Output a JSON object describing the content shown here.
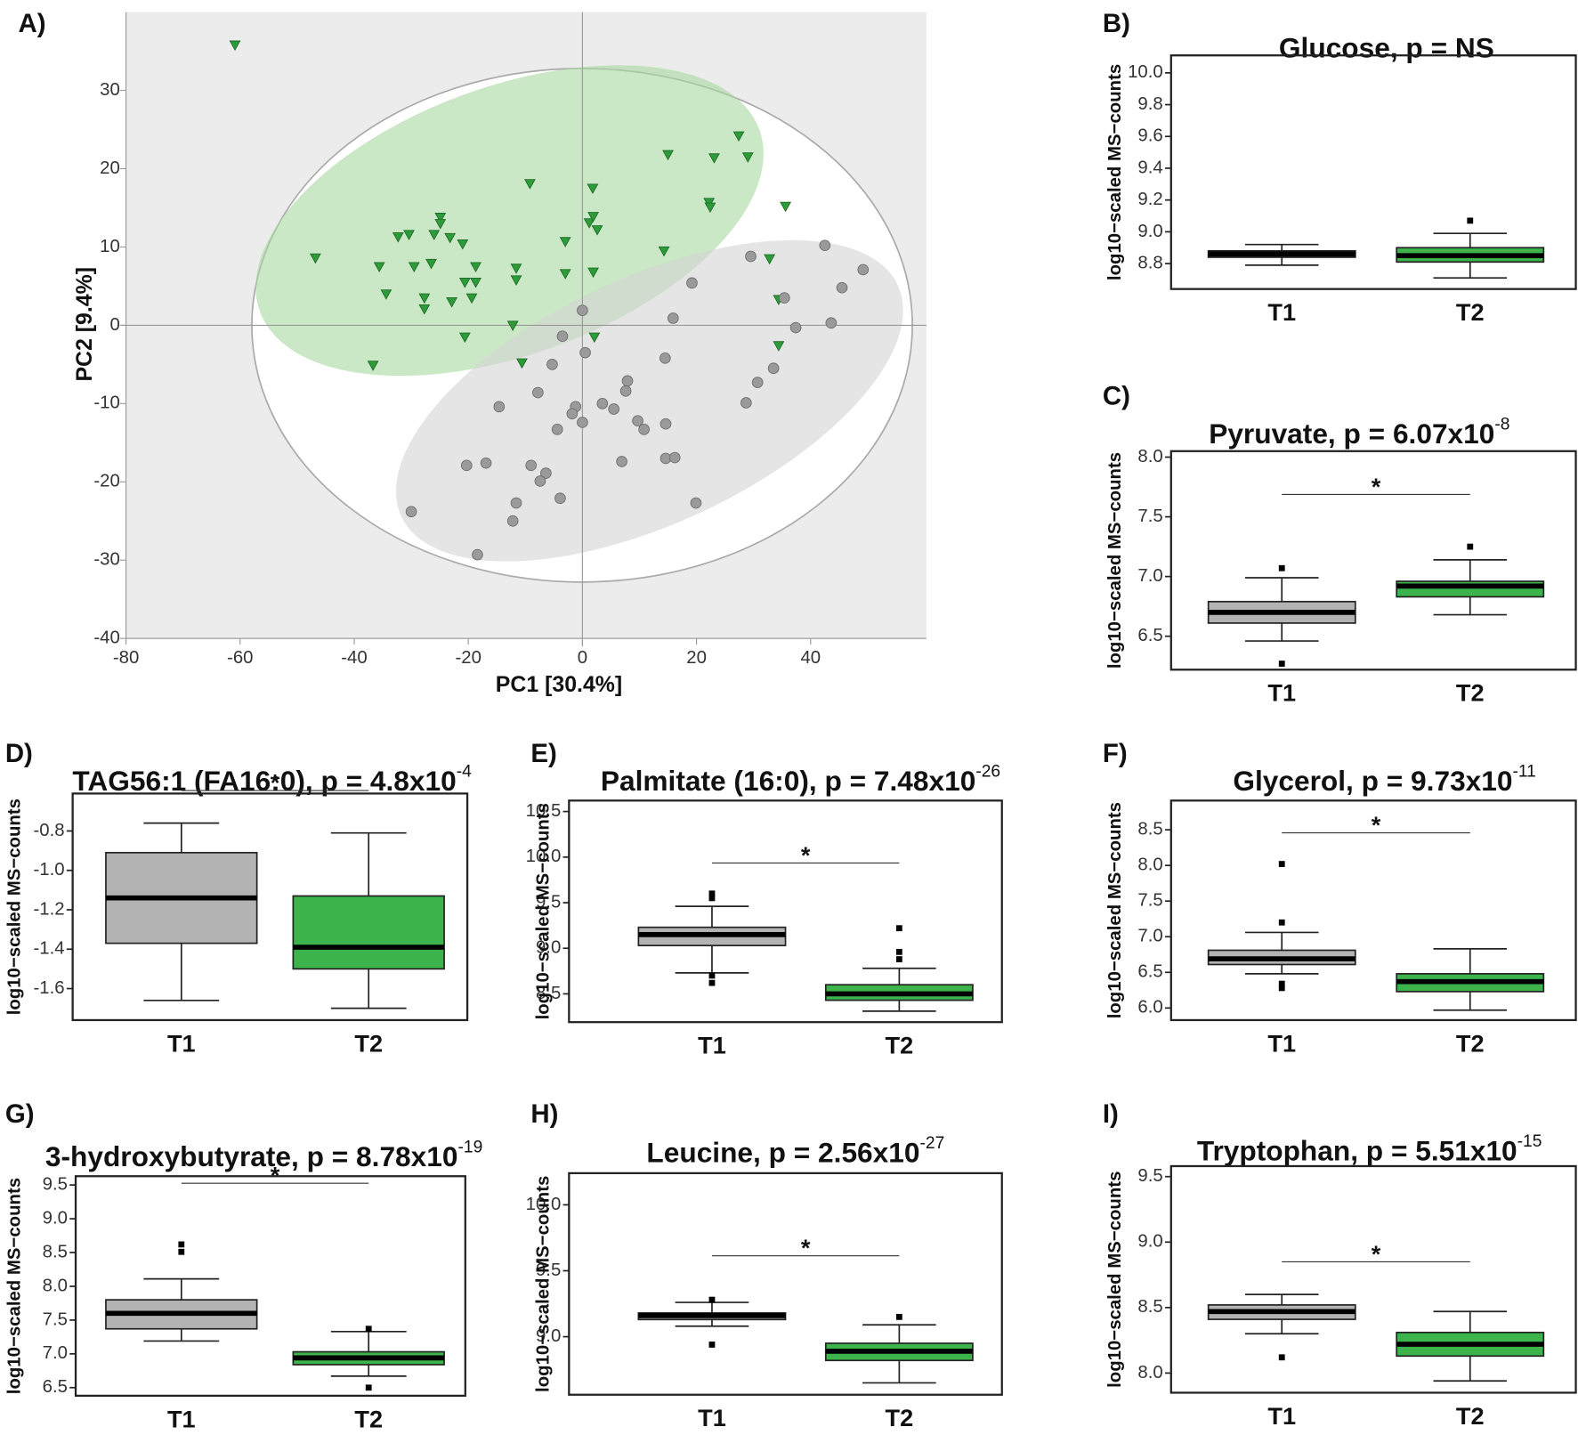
{
  "chart_data": [
    {
      "type": "scatter",
      "label": "A)",
      "xlabel": "PC1 [30.4%]",
      "ylabel": "PC2 [9.4%]",
      "xlim": [
        -80,
        60.3
      ],
      "ylim": [
        -40,
        40
      ],
      "xticks": [
        -80,
        -60,
        -40,
        -20,
        0,
        20,
        40
      ],
      "yticks": [
        -40,
        -30,
        -20,
        -10,
        0,
        10,
        20,
        30
      ],
      "series": [
        {
          "color": "#2e9b3a",
          "marker": "triangle",
          "x": [
            -60.9,
            -46.8,
            -36.7,
            -35.6,
            -34.4,
            -32.3,
            -30.4,
            -29.5,
            -27.7,
            -27.7,
            -26.5,
            -26.0,
            -24.9,
            -24.9,
            -23.2,
            -22.9,
            -21.0,
            -20.6,
            -20.6,
            -19.4,
            -18.7,
            -18.7,
            -12.2,
            -11.6,
            -11.6,
            -10.6,
            -9.2,
            -3.0,
            -3.0,
            1.2,
            1.8,
            1.9,
            2.6,
            1.9,
            2.1,
            14.3,
            15.0,
            22.2,
            22.4,
            23.1,
            27.4,
            29.0,
            32.8,
            34.4,
            34.4,
            35.6
          ],
          "y": [
            35.8,
            8.6,
            -5.1,
            7.5,
            4.0,
            11.3,
            11.6,
            7.5,
            3.5,
            2.1,
            7.9,
            11.6,
            13.8,
            13.0,
            11.2,
            3.0,
            10.4,
            5.5,
            -1.5,
            3.5,
            7.5,
            5.5,
            0.0,
            7.3,
            5.8,
            -4.8,
            18.1,
            10.7,
            6.6,
            13.1,
            17.5,
            13.9,
            12.2,
            6.8,
            -1.5,
            9.5,
            21.8,
            15.7,
            15.1,
            21.4,
            24.2,
            21.5,
            8.5,
            3.3,
            -2.6,
            15.2
          ]
        },
        {
          "color": "#9a9a9a",
          "marker": "circle",
          "x": [
            0.0,
            42.5,
            49.2,
            45.5,
            29.5,
            19.2,
            35.4,
            43.6,
            37.4,
            15.9,
            -3.5,
            0.5,
            33.5,
            30.7,
            14.5,
            -5.3,
            7.9,
            7.6,
            -7.8,
            -14.6,
            -1.2,
            -1.8,
            0.0,
            3.5,
            5.5,
            9.7,
            10.8,
            14.6,
            28.7,
            -4.4,
            -20.3,
            -16.9,
            -9.0,
            -6.4,
            -7.4,
            -3.9,
            6.9,
            14.6,
            16.2,
            -11.6,
            -12.2,
            -30.0,
            -18.4,
            19.9
          ],
          "y": [
            1.9,
            10.2,
            7.1,
            4.8,
            8.8,
            5.4,
            3.5,
            0.3,
            -0.3,
            0.9,
            -1.4,
            -3.5,
            -5.5,
            -7.3,
            -4.2,
            -5.0,
            -7.1,
            -8.4,
            -8.6,
            -10.4,
            -10.4,
            -11.3,
            -12.4,
            -10.0,
            -10.7,
            -12.2,
            -13.3,
            -12.6,
            -9.9,
            -13.3,
            -17.9,
            -17.6,
            -17.9,
            -18.9,
            -19.9,
            -22.1,
            -17.4,
            -17.0,
            -16.9,
            -22.7,
            -25.0,
            -23.8,
            -29.3,
            -22.7
          ]
        }
      ]
    },
    {
      "type": "box",
      "label": "B)",
      "title": "Glucose, p = NS",
      "ylabel": "log10−scaled MS−counts",
      "categories": [
        "T1",
        "T2"
      ],
      "ylim": [
        8.64,
        10.11
      ],
      "yticks": [
        8.8,
        {
          "value": 9,
          "label": "9.0"
        },
        9.2,
        9.4,
        9.6,
        9.8,
        {
          "value": 10,
          "label": "10.0"
        }
      ],
      "boxes": [
        {
          "color": "#b3b3b3",
          "min": 8.79,
          "q1": 8.84,
          "median": 8.86,
          "q3": 8.88,
          "max": 8.92,
          "outliers": []
        },
        {
          "color": "#3cb44b",
          "min": 8.71,
          "q1": 8.81,
          "median": 8.85,
          "q3": 8.9,
          "max": 8.99,
          "outliers": [
            9.07
          ]
        }
      ]
    },
    {
      "type": "box",
      "label": "C)",
      "title": "Pyruvate, p = 6.07x10",
      "title_exponent": "-8",
      "ylabel": "log10−scaled MS−counts",
      "categories": [
        "T1",
        "T2"
      ],
      "significance": "*",
      "ylim": [
        6.22,
        8.05
      ],
      "yticks": [
        6.5,
        {
          "value": 7,
          "label": "7.0"
        },
        7.5,
        {
          "value": 8,
          "label": "8.0"
        }
      ],
      "boxes": [
        {
          "color": "#b3b3b3",
          "min": 6.46,
          "q1": 6.61,
          "median": 6.7,
          "q3": 6.79,
          "max": 6.99,
          "outliers": [
            7.07,
            6.27
          ]
        },
        {
          "color": "#3cb44b",
          "min": 6.68,
          "q1": 6.83,
          "median": 6.92,
          "q3": 6.96,
          "max": 7.14,
          "outliers": [
            7.25
          ]
        }
      ]
    },
    {
      "type": "box",
      "label": "D)",
      "title": "TAG56:1 (FA16:0), p = 4.8x10",
      "title_exponent": "-4",
      "ylabel": "log10−scaled MS−counts",
      "categories": [
        "T1",
        "T2"
      ],
      "significance": "*",
      "ylim": [
        -1.76,
        -0.61
      ],
      "yticks": [
        -1.6,
        -1.4,
        -1.2,
        {
          "value": -1,
          "label": "-1.0"
        },
        -0.8
      ],
      "boxes": [
        {
          "color": "#b3b3b3",
          "min": -1.66,
          "q1": -1.37,
          "median": -1.14,
          "q3": -0.91,
          "max": -0.76,
          "outliers": []
        },
        {
          "color": "#3cb44b",
          "min": -1.7,
          "q1": -1.5,
          "median": -1.39,
          "q3": -1.13,
          "max": -0.81,
          "outliers": []
        }
      ]
    },
    {
      "type": "box",
      "label": "E)",
      "title": "Palmitate (16:0), p = 7.48x10",
      "title_exponent": "-26",
      "ylabel": "log10−scaled MS−counts",
      "categories": [
        "T1",
        "T2"
      ],
      "significance": "*",
      "ylim": [
        8.19,
        10.62
      ],
      "yticks": [
        8.5,
        {
          "value": 9,
          "label": "9.0"
        },
        9.5,
        {
          "value": 10,
          "label": "10.0"
        },
        10.5
      ],
      "boxes": [
        {
          "color": "#b3b3b3",
          "min": 8.73,
          "q1": 9.03,
          "median": 9.15,
          "q3": 9.23,
          "max": 9.46,
          "outliers": [
            9.6,
            9.55,
            8.7,
            8.62
          ]
        },
        {
          "color": "#3cb44b",
          "min": 8.31,
          "q1": 8.43,
          "median": 8.5,
          "q3": 8.6,
          "max": 8.78,
          "outliers": [
            9.22,
            8.96,
            8.88
          ]
        }
      ]
    },
    {
      "type": "box",
      "label": "F)",
      "title": "Glycerol, p = 9.73x10",
      "title_exponent": "-11",
      "ylabel": "log10−scaled MS−counts",
      "categories": [
        "T1",
        "T2"
      ],
      "significance": "*",
      "ylim": [
        5.83,
        8.91
      ],
      "yticks": [
        {
          "value": 6,
          "label": "6.0"
        },
        6.5,
        {
          "value": 7,
          "label": "7.0"
        },
        7.5,
        {
          "value": 8,
          "label": "8.0"
        },
        8.5
      ],
      "boxes": [
        {
          "color": "#b3b3b3",
          "min": 6.48,
          "q1": 6.61,
          "median": 6.69,
          "q3": 6.81,
          "max": 7.06,
          "outliers": [
            8.02,
            7.2,
            6.34,
            6.28
          ]
        },
        {
          "color": "#3cb44b",
          "min": 5.97,
          "q1": 6.23,
          "median": 6.37,
          "q3": 6.48,
          "max": 6.83,
          "outliers": []
        }
      ]
    },
    {
      "type": "box",
      "label": "G)",
      "title": "3-hydroxybutyrate, p = 8.78x10",
      "title_exponent": "-19",
      "ylabel": "log10−scaled MS−counts",
      "categories": [
        "T1",
        "T2"
      ],
      "significance": "*",
      "ylim": [
        6.38,
        9.63
      ],
      "yticks": [
        6.5,
        {
          "value": 7,
          "label": "7.0"
        },
        7.5,
        {
          "value": 8,
          "label": "8.0"
        },
        8.5,
        {
          "value": 9,
          "label": "9.0"
        },
        9.5
      ],
      "boxes": [
        {
          "color": "#b3b3b3",
          "min": 7.19,
          "q1": 7.37,
          "median": 7.6,
          "q3": 7.8,
          "max": 8.11,
          "outliers": [
            8.62,
            8.51
          ]
        },
        {
          "color": "#3cb44b",
          "min": 6.67,
          "q1": 6.84,
          "median": 6.94,
          "q3": 7.03,
          "max": 7.33,
          "outliers": [
            7.37,
            6.5
          ]
        }
      ]
    },
    {
      "type": "box",
      "label": "H)",
      "title": "Leucine, p = 2.56x10",
      "title_exponent": "-27",
      "ylabel": "log10−scaled MS−counts",
      "categories": [
        "T1",
        "T2"
      ],
      "significance": "*",
      "ylim": [
        8.56,
        10.24
      ],
      "yticks": [
        {
          "value": 9,
          "label": "9.0"
        },
        9.5,
        {
          "value": 10,
          "label": "10.0"
        }
      ],
      "boxes": [
        {
          "color": "#b3b3b3",
          "min": 9.08,
          "q1": 9.13,
          "median": 9.16,
          "q3": 9.18,
          "max": 9.26,
          "outliers": [
            9.28,
            8.94
          ]
        },
        {
          "color": "#3cb44b",
          "min": 8.65,
          "q1": 8.82,
          "median": 8.89,
          "q3": 8.95,
          "max": 9.09,
          "outliers": [
            9.15
          ]
        }
      ]
    },
    {
      "type": "box",
      "label": "I)",
      "title": "Tryptophan, p = 5.51x10",
      "title_exponent": "-15",
      "ylabel": "log10−scaled MS−counts",
      "categories": [
        "T1",
        "T2"
      ],
      "significance": "*",
      "ylim": [
        7.85,
        9.58
      ],
      "yticks": [
        {
          "value": 8,
          "label": "8.0"
        },
        8.5,
        {
          "value": 9,
          "label": "9.0"
        },
        9.5
      ],
      "boxes": [
        {
          "color": "#b3b3b3",
          "min": 8.3,
          "q1": 8.41,
          "median": 8.47,
          "q3": 8.52,
          "max": 8.6,
          "outliers": [
            8.12
          ]
        },
        {
          "color": "#3cb44b",
          "min": 7.94,
          "q1": 8.13,
          "median": 8.22,
          "q3": 8.31,
          "max": 8.47,
          "outliers": []
        }
      ]
    }
  ]
}
